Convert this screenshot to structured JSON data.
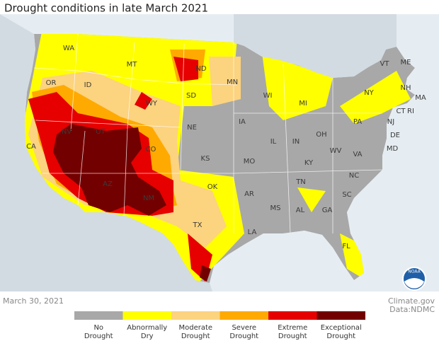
{
  "title": "Drought conditions in late March 2021",
  "date": "March 30, 2021",
  "credit": [
    "Climate.gov",
    "Data:NDMC"
  ],
  "logo": "NOAA",
  "legend": [
    {
      "lines": [
        "No",
        "Drought"
      ],
      "color": "#a8a8a8"
    },
    {
      "lines": [
        "Abnormally",
        "Dry"
      ],
      "color": "#ffff00"
    },
    {
      "lines": [
        "Moderate",
        "Drought"
      ],
      "color": "#fcd37f"
    },
    {
      "lines": [
        "Severe",
        "Drought"
      ],
      "color": "#ffaa00"
    },
    {
      "lines": [
        "Extreme",
        "Drought"
      ],
      "color": "#e60000"
    },
    {
      "lines": [
        "Exceptional",
        "Drought"
      ],
      "color": "#730000"
    }
  ],
  "states": [
    "WA",
    "MT",
    "ND",
    "MN",
    "VT",
    "ME",
    "NH",
    "MA",
    "RI",
    "CT",
    "NY",
    "WI",
    "MI",
    "OR",
    "ID",
    "SD",
    "WY",
    "IA",
    "PA",
    "NJ",
    "DE",
    "MD",
    "OH",
    "IN",
    "IL",
    "NE",
    "NV",
    "UT",
    "CA",
    "CO",
    "KS",
    "MO",
    "KY",
    "WV",
    "VA",
    "NC",
    "TN",
    "AR",
    "OK",
    "AZ",
    "NM",
    "SC",
    "AL",
    "GA",
    "MS",
    "TX",
    "LA",
    "FL"
  ]
}
